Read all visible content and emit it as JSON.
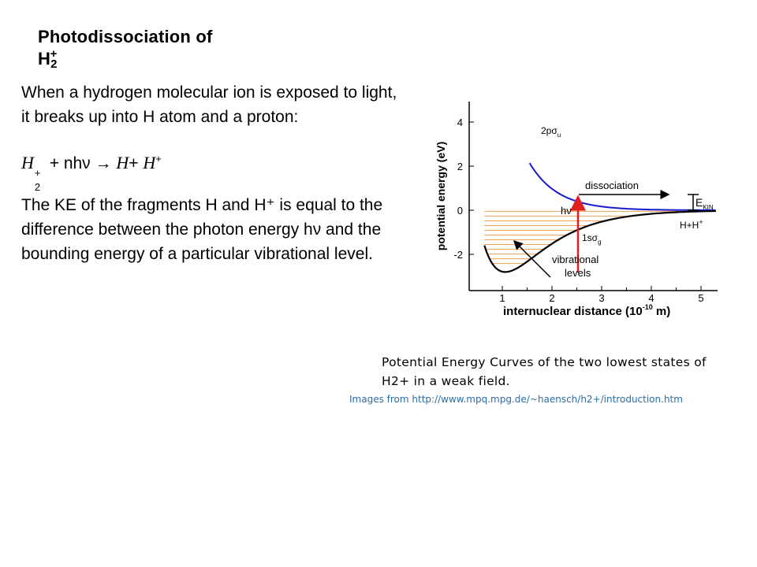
{
  "slide": {
    "title_main": "Photodissociation of H",
    "title_sub": "2",
    "title_sup": "+",
    "paragraph1": "When a hydrogen molecular ion is exposed to light, it breaks up into H atom and a proton:",
    "equation": {
      "lhs_symbol": "H",
      "lhs_sub": "2",
      "lhs_sup": "+",
      "plus_term": " + nhν → ",
      "product1": "H",
      "plus": "+ ",
      "product2": "H",
      "product2_sup": "+"
    },
    "paragraph2": "The KE of the fragments H and H⁺ is equal to the difference between the photon energy hν and the bounding energy of a particular vibrational level.",
    "caption": "Potential Energy Curves of the two lowest states of H2+ in a weak field.",
    "source": "Images from http://www.mpq.mpg.de/~haensch/h2+/introduction.htm"
  },
  "diagram": {
    "y_axis_label": "potential energy (eV)",
    "x_axis_label_pre": "internuclear distance (10",
    "x_axis_label_exp": "-10",
    "x_axis_label_post": " m)",
    "y_ticks": [
      "4",
      "2",
      "0",
      "-2"
    ],
    "x_ticks": [
      "1",
      "2",
      "3",
      "4",
      "5"
    ],
    "upper_state_label": "2pσ",
    "upper_state_sub": "u",
    "lower_state_label": "1sσ",
    "lower_state_sub": "g",
    "dissociation_label": "dissociation",
    "photon_label": "hν",
    "vibrational_label_1": "vibrational",
    "vibrational_label_2": "levels",
    "ekin_label": "E",
    "ekin_sub": "KIN",
    "asymptote_label": "H+H",
    "asymptote_sup": "+",
    "colors": {
      "upper_curve": "#1a1acc",
      "lower_curve": "#000000",
      "levels": "#f0a050",
      "photon_arrow": "#e02020"
    }
  }
}
